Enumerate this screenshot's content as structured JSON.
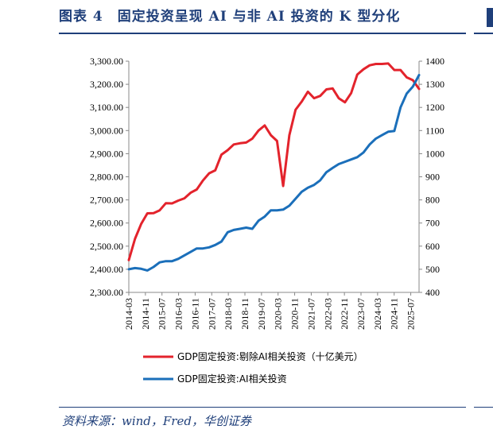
{
  "header": {
    "title": "图表 4　固定投资呈现 AI 与非 AI 投资的 K 型分化"
  },
  "footer": {
    "source": "资料来源：wind，Fred，华创证券"
  },
  "colors": {
    "brand": "#1f3f7a",
    "red": "#e3232c",
    "blue": "#1b6fba"
  },
  "chart_data": {
    "type": "line",
    "title": "",
    "x_tick_labels": [
      "2014-03",
      "2014-11",
      "2015-07",
      "2016-03",
      "2016-11",
      "2017-07",
      "2018-03",
      "2018-11",
      "2019-07",
      "2020-03",
      "2020-11",
      "2021-07",
      "2022-03",
      "2022-11",
      "2023-07",
      "2024-03",
      "2024-11",
      "2025-07"
    ],
    "x_start": "2014-03",
    "x_end": "2025-11",
    "y_left": {
      "min": 2300,
      "max": 3300,
      "step": 100,
      "tick_labels": [
        "2,300.00",
        "2,400.00",
        "2,500.00",
        "2,600.00",
        "2,700.00",
        "2,800.00",
        "2,900.00",
        "3,000.00",
        "3,100.00",
        "3,200.00",
        "3,300.00"
      ]
    },
    "y_right": {
      "min": 400,
      "max": 1400,
      "step": 100,
      "tick_labels": [
        "400",
        "500",
        "600",
        "700",
        "800",
        "900",
        "1000",
        "1100",
        "1200",
        "1300",
        "1400"
      ]
    },
    "series": [
      {
        "name": "GDP固定投资:剔除AI相关投资（十亿美元）",
        "axis": "left",
        "color": "#e3232c",
        "values": [
          2440,
          2532,
          2596,
          2642,
          2643,
          2655,
          2686,
          2685,
          2697,
          2707,
          2731,
          2745,
          2784,
          2815,
          2828,
          2896,
          2915,
          2940,
          2945,
          2948,
          2965,
          3000,
          3022,
          2980,
          2955,
          2760,
          2980,
          3090,
          3125,
          3168,
          3140,
          3150,
          3178,
          3182,
          3140,
          3122,
          3162,
          3242,
          3265,
          3282,
          3288,
          3288,
          3290,
          3262,
          3262,
          3230,
          3218,
          3180
        ]
      },
      {
        "name": "GDP固定投资:AI相关投资",
        "axis": "right",
        "color": "#1b6fba",
        "values": [
          500,
          505,
          502,
          495,
          510,
          530,
          535,
          535,
          545,
          560,
          575,
          590,
          590,
          595,
          605,
          620,
          660,
          670,
          675,
          680,
          675,
          710,
          728,
          755,
          755,
          758,
          775,
          805,
          835,
          853,
          865,
          885,
          920,
          938,
          955,
          965,
          975,
          985,
          1005,
          1040,
          1065,
          1080,
          1095,
          1098,
          1200,
          1260,
          1290,
          1340
        ]
      }
    ],
    "legend": {
      "position": "bottom"
    },
    "grid": false
  }
}
